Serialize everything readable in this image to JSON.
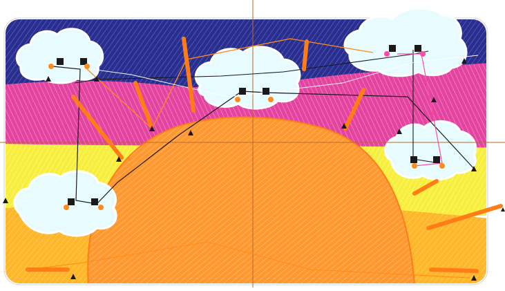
{
  "design": {
    "colors": {
      "navy": "#2a2f8f",
      "magenta": "#e0409e",
      "yellow": "#f7ee3a",
      "orange_light": "#ffb52a",
      "orange": "#ff8a1c",
      "sun": "#ff9a30",
      "cloud": "#e8fbff",
      "guide_line": "#b86a2a",
      "stitch_path": "#1a1a1a",
      "jump_orange": "#ff8c1a",
      "jump_pink": "#ff4aa8"
    },
    "elements": {
      "sky_band": "navy",
      "pink_band": "magenta",
      "yellow_band": "yellow",
      "ground_band": "orange_light",
      "sun": "sun",
      "clouds": [
        "cloud-top-left",
        "cloud-center",
        "cloud-top-right",
        "cloud-right",
        "cloud-bottom-left"
      ]
    }
  }
}
